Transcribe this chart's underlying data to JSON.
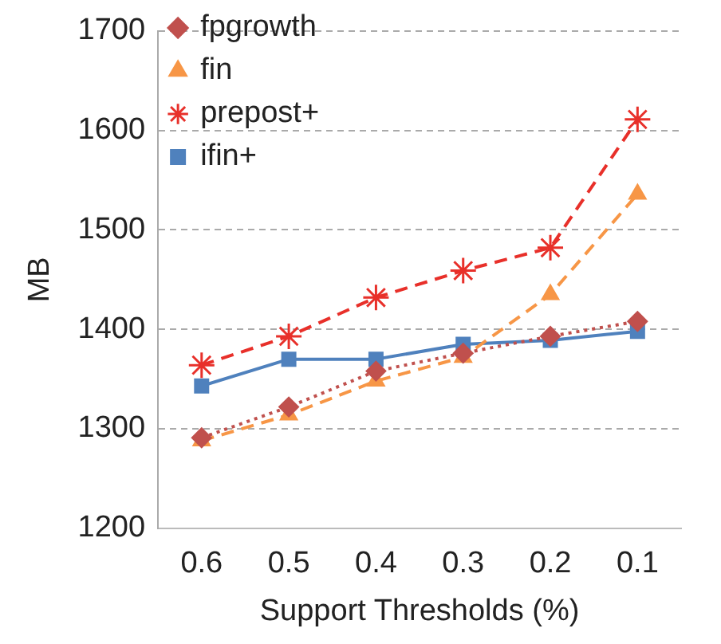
{
  "chart_data": {
    "type": "line",
    "xlabel": "Support Thresholds (%)",
    "ylabel": "MB",
    "categories": [
      "0.6",
      "0.5",
      "0.4",
      "0.3",
      "0.2",
      "0.1"
    ],
    "ylim": [
      1200,
      1700
    ],
    "yticks": [
      1200,
      1300,
      1400,
      1500,
      1600,
      1700
    ],
    "grid": "y",
    "legend": "top left",
    "series": [
      {
        "name": "fpgrowth",
        "color": "#c0504d",
        "marker": "diamond",
        "line_style": "dotted",
        "values": [
          1291,
          1322,
          1358,
          1376,
          1393,
          1408
        ]
      },
      {
        "name": "fin",
        "color": "#f79646",
        "marker": "triangle",
        "line_style": "dashed",
        "values": [
          1288,
          1314,
          1348,
          1372,
          1435,
          1536
        ]
      },
      {
        "name": "prepost+",
        "color": "#e8302a",
        "marker": "cross",
        "line_style": "dashed",
        "values": [
          1364,
          1393,
          1432,
          1459,
          1482,
          1611
        ]
      },
      {
        "name": "ifin+",
        "color": "#4f81bd",
        "marker": "square",
        "line_style": "solid",
        "values": [
          1343,
          1370,
          1370,
          1385,
          1389,
          1398
        ]
      }
    ]
  }
}
